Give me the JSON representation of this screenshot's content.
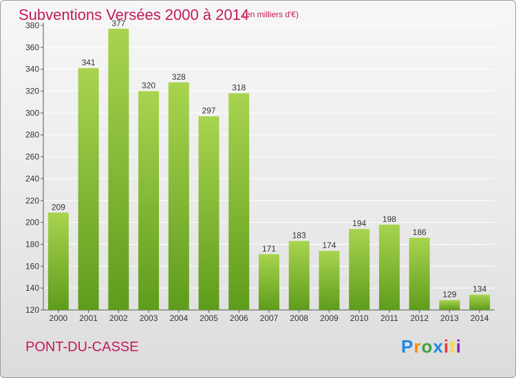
{
  "header": {
    "title": "Subventions Versées 2000 à 2014",
    "subtitle": "(en milliers d'€)"
  },
  "footer": {
    "commune": "PONT-DU-CASSE",
    "logo_text": "Proxiti",
    "logo_colors": [
      "#1e88e5",
      "#fb8c00",
      "#43a047",
      "#1e88e5",
      "#e53935",
      "#fdd835",
      "#8e24aa"
    ]
  },
  "colors": {
    "bar_top": "#a8d44f",
    "bar_bottom": "#5f9c1c",
    "grid": "#ffffff",
    "axis": "#555555",
    "accent": "#c2185b"
  },
  "chart_data": {
    "type": "bar",
    "categories": [
      "2000",
      "2001",
      "2002",
      "2003",
      "2004",
      "2005",
      "2006",
      "2007",
      "2008",
      "2009",
      "2010",
      "2011",
      "2012",
      "2013",
      "2014"
    ],
    "values": [
      209,
      341,
      377,
      320,
      328,
      297,
      318,
      171,
      183,
      174,
      194,
      198,
      186,
      129,
      134
    ],
    "ylim": [
      120,
      380
    ],
    "yticks": [
      120,
      140,
      160,
      180,
      200,
      220,
      240,
      260,
      280,
      300,
      320,
      340,
      360,
      380
    ],
    "grid": true,
    "legend": "none"
  }
}
